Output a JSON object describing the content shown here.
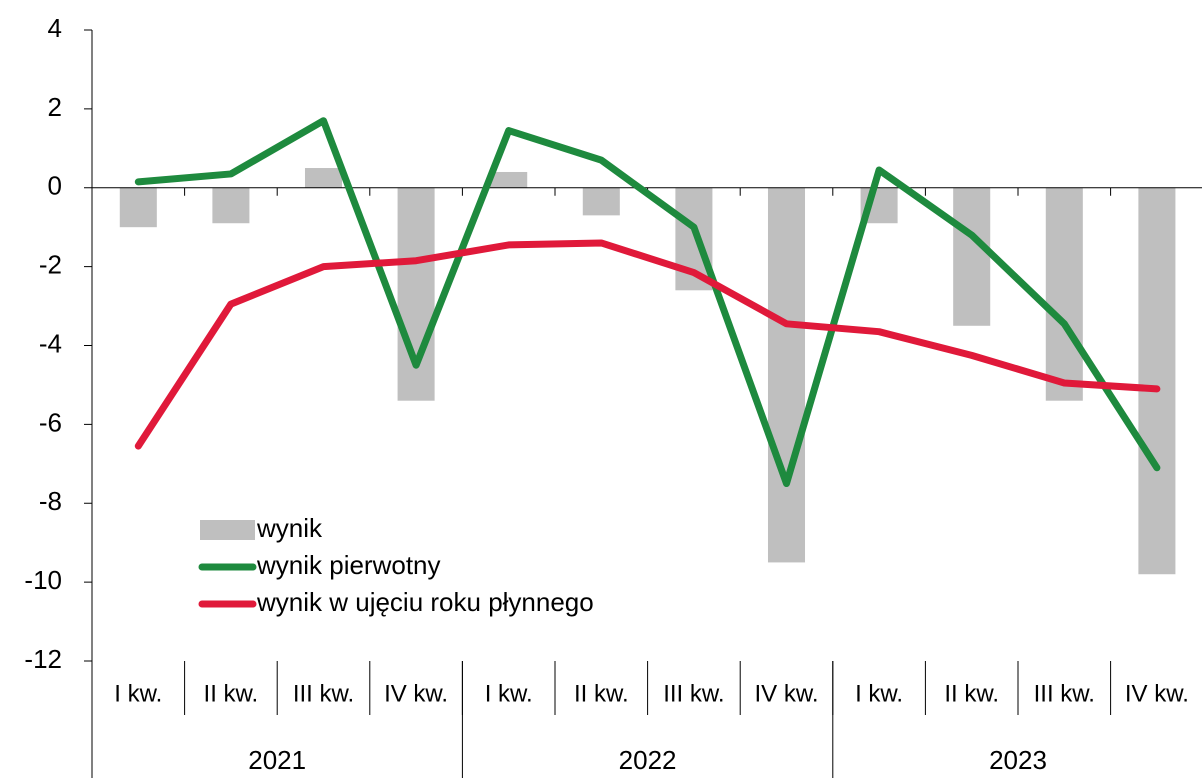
{
  "chart_data": {
    "type": "bar_line",
    "categories": [
      "I kw.",
      "II kw.",
      "III kw.",
      "IV kw.",
      "I kw.",
      "II kw.",
      "III kw.",
      "IV kw.",
      "I kw.",
      "II kw.",
      "III kw.",
      "IV kw."
    ],
    "x_groups": [
      "2021",
      "2022",
      "2023"
    ],
    "series": [
      {
        "name": "wynik",
        "type": "bar",
        "color": "#bfbfbf",
        "values": [
          -1.0,
          -0.9,
          0.5,
          -5.4,
          0.4,
          -0.7,
          -2.6,
          -9.5,
          -0.9,
          -3.5,
          -5.4,
          -9.8
        ]
      },
      {
        "name": "wynik pierwotny",
        "type": "line",
        "color": "#1e8a3e",
        "values": [
          0.15,
          0.35,
          1.7,
          -4.5,
          1.45,
          0.7,
          -1.0,
          -7.5,
          0.45,
          -1.2,
          -3.45,
          -7.1
        ]
      },
      {
        "name": "wynik w ujęciu roku płynnego",
        "type": "line",
        "color": "#e0193a",
        "values": [
          -6.55,
          -2.95,
          -2.0,
          -1.85,
          -1.45,
          -1.4,
          -2.15,
          -3.45,
          -3.65,
          -4.25,
          -4.95,
          -5.1
        ]
      }
    ],
    "ylim": [
      -12,
      4
    ],
    "yticks": [
      4,
      2,
      0,
      -2,
      -4,
      -6,
      -8,
      -10,
      -12
    ],
    "grid": false
  }
}
